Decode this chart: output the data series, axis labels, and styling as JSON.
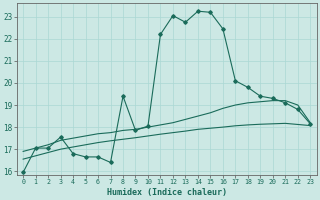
{
  "xlabel": "Humidex (Indice chaleur)",
  "bg_color": "#cce8e4",
  "grid_color": "#aad8d4",
  "line_color": "#1a6b5a",
  "xlim": [
    -0.5,
    23.5
  ],
  "ylim": [
    15.85,
    23.6
  ],
  "yticks": [
    16,
    17,
    18,
    19,
    20,
    21,
    22,
    23
  ],
  "xticks": [
    0,
    1,
    2,
    3,
    4,
    5,
    6,
    7,
    8,
    9,
    10,
    11,
    12,
    13,
    14,
    15,
    16,
    17,
    18,
    19,
    20,
    21,
    22,
    23
  ],
  "line1_x": [
    0,
    1,
    2,
    3,
    4,
    5,
    6,
    7,
    8,
    9,
    10,
    11,
    12,
    13,
    14,
    15,
    16,
    17,
    18,
    19,
    20,
    21,
    22,
    23
  ],
  "line1_y": [
    15.95,
    17.05,
    17.05,
    17.55,
    16.8,
    16.65,
    16.65,
    16.4,
    19.4,
    17.85,
    18.05,
    22.2,
    23.05,
    22.75,
    23.25,
    23.2,
    22.45,
    20.1,
    19.8,
    19.4,
    19.3,
    19.1,
    18.8,
    18.15
  ],
  "line2_x": [
    0,
    1,
    2,
    3,
    4,
    5,
    6,
    7,
    8,
    9,
    10,
    11,
    12,
    13,
    14,
    15,
    16,
    17,
    18,
    19,
    20,
    21,
    22,
    23
  ],
  "line2_y": [
    16.9,
    17.05,
    17.2,
    17.4,
    17.5,
    17.6,
    17.7,
    17.75,
    17.85,
    17.9,
    18.0,
    18.1,
    18.2,
    18.35,
    18.5,
    18.65,
    18.85,
    19.0,
    19.1,
    19.15,
    19.2,
    19.2,
    19.0,
    18.2
  ],
  "line3_x": [
    0,
    1,
    2,
    3,
    4,
    5,
    6,
    7,
    8,
    9,
    10,
    11,
    12,
    13,
    14,
    15,
    16,
    17,
    18,
    19,
    20,
    21,
    22,
    23
  ],
  "line3_y": [
    16.55,
    16.7,
    16.85,
    17.0,
    17.1,
    17.2,
    17.3,
    17.38,
    17.45,
    17.52,
    17.6,
    17.68,
    17.75,
    17.82,
    17.9,
    17.95,
    18.0,
    18.06,
    18.1,
    18.13,
    18.15,
    18.17,
    18.12,
    18.07
  ]
}
